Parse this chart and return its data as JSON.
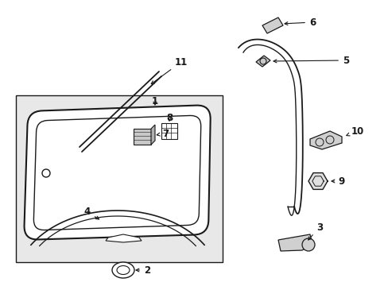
{
  "background_color": "#ffffff",
  "figure_width": 4.89,
  "figure_height": 3.6,
  "dpi": 100,
  "line_color": "#1a1a1a",
  "box_fill": "#e8e8e8",
  "glass_fill": "#f0f0f0"
}
